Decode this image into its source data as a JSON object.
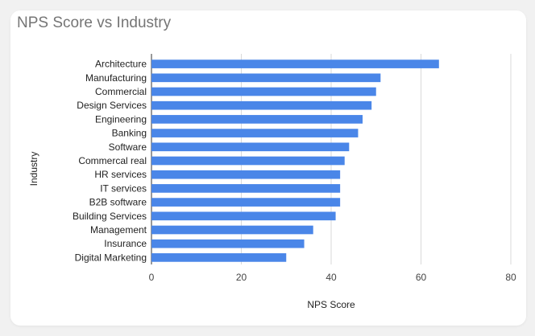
{
  "chart_data": {
    "type": "bar",
    "orientation": "horizontal",
    "title": "NPS Score vs Industry",
    "xlabel": "NPS Score",
    "ylabel": "Industry",
    "categories": [
      "Architecture",
      "Manufacturing",
      "Commercial",
      "Design Services",
      "Engineering",
      "Banking",
      "Software",
      "Commercal real",
      "HR services",
      "IT services",
      "B2B software",
      "Building Services",
      "Management",
      "Insurance",
      "Digital Marketing"
    ],
    "values": [
      64,
      51,
      50,
      49,
      47,
      46,
      44,
      43,
      42,
      42,
      42,
      41,
      36,
      34,
      30
    ],
    "xlim": [
      0,
      80
    ],
    "xticks": [
      "0",
      "20",
      "40",
      "60",
      "80"
    ],
    "grid": true,
    "legend": "none",
    "bar_color": "#4a86e8"
  }
}
